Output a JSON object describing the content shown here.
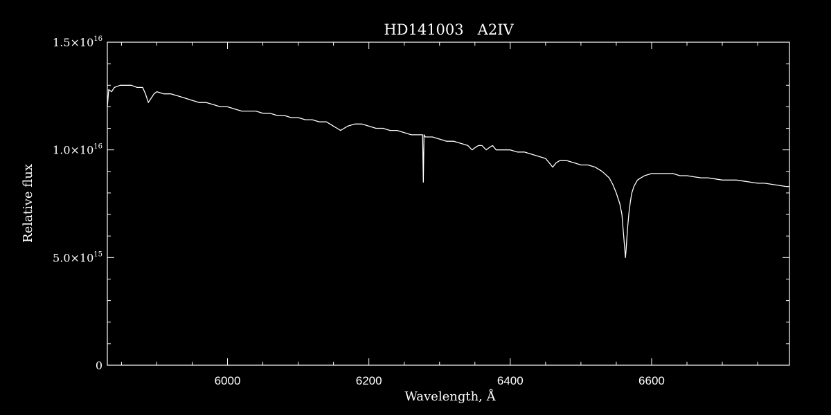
{
  "chart_data": {
    "type": "line",
    "title": "HD141003   A2IV",
    "xlabel": "Wavelength, Å",
    "ylabel": "Relative flux",
    "xlim": [
      5830,
      6795
    ],
    "ylim": [
      0,
      1.5e+16
    ],
    "x_ticks": [
      6000,
      6200,
      6400,
      6600
    ],
    "x_tick_labels": [
      "6000",
      "6200",
      "6400",
      "6600"
    ],
    "y_ticks": [
      0,
      5000000000000000.0,
      1e+16,
      1.5e+16
    ],
    "y_tick_labels": [
      {
        "value": 0,
        "mantissa": "0",
        "exponent": ""
      },
      {
        "value": 5000000000000000.0,
        "mantissa": "5.0×10",
        "exponent": "15"
      },
      {
        "value": 1e+16,
        "mantissa": "1.0×10",
        "exponent": "16"
      },
      {
        "value": 1.5e+16,
        "mantissa": "1.5×10",
        "exponent": "16"
      }
    ],
    "grid": false,
    "colors": {
      "background": "#000000",
      "foreground": "#ffffff"
    },
    "series": [
      {
        "x": [
          5830,
          5832,
          5836,
          5840,
          5848,
          5856,
          5864,
          5872,
          5880,
          5884,
          5888,
          5892,
          5896,
          5900,
          5910,
          5920,
          5930,
          5940,
          5950,
          5960,
          5970,
          5980,
          5990,
          6000,
          6010,
          6020,
          6030,
          6040,
          6050,
          6060,
          6070,
          6080,
          6090,
          6100,
          6110,
          6120,
          6130,
          6140,
          6150,
          6155,
          6160,
          6165,
          6170,
          6180,
          6190,
          6200,
          6210,
          6220,
          6230,
          6240,
          6250,
          6260,
          6270,
          6276,
          6277,
          6278,
          6280,
          6290,
          6300,
          6310,
          6320,
          6330,
          6340,
          6346,
          6350,
          6355,
          6360,
          6366,
          6370,
          6375,
          6380,
          6390,
          6400,
          6410,
          6420,
          6430,
          6440,
          6450,
          6455,
          6460,
          6465,
          6470,
          6480,
          6490,
          6500,
          6510,
          6520,
          6530,
          6540,
          6545,
          6550,
          6555,
          6558,
          6560,
          6562,
          6563,
          6564,
          6566,
          6568,
          6570,
          6572,
          6575,
          6580,
          6585,
          6590,
          6600,
          6610,
          6620,
          6630,
          6640,
          6650,
          6660,
          6670,
          6680,
          6690,
          6700,
          6710,
          6720,
          6730,
          6740,
          6750,
          6760,
          6770,
          6780,
          6790,
          6795
        ],
        "y": [
          1.2e+16,
          1.28e+16,
          1.27e+16,
          1.29e+16,
          1.3e+16,
          1.3e+16,
          1.3e+16,
          1.29e+16,
          1.29e+16,
          1.26e+16,
          1.22e+16,
          1.24e+16,
          1.26e+16,
          1.27e+16,
          1.26e+16,
          1.26e+16,
          1.25e+16,
          1.24e+16,
          1.23e+16,
          1.22e+16,
          1.22e+16,
          1.21e+16,
          1.2e+16,
          1.2e+16,
          1.19e+16,
          1.18e+16,
          1.18e+16,
          1.18e+16,
          1.17e+16,
          1.17e+16,
          1.16e+16,
          1.16e+16,
          1.15e+16,
          1.15e+16,
          1.14e+16,
          1.14e+16,
          1.13e+16,
          1.13e+16,
          1.11e+16,
          1.1e+16,
          1.09e+16,
          1.1e+16,
          1.11e+16,
          1.12e+16,
          1.12e+16,
          1.11e+16,
          1.1e+16,
          1.1e+16,
          1.09e+16,
          1.09e+16,
          1.08e+16,
          1.07e+16,
          1.07e+16,
          1.07e+16,
          8500000000000000.0,
          1.07e+16,
          1.06e+16,
          1.06e+16,
          1.05e+16,
          1.04e+16,
          1.04e+16,
          1.03e+16,
          1.02e+16,
          1e+16,
          1.01e+16,
          1.02e+16,
          1.02e+16,
          1e+16,
          1.01e+16,
          1.02e+16,
          1e+16,
          1e+16,
          1e+16,
          9900000000000000.0,
          9900000000000000.0,
          9800000000000000.0,
          9700000000000000.0,
          9600000000000000.0,
          9400000000000000.0,
          9200000000000000.0,
          9400000000000000.0,
          9500000000000000.0,
          9500000000000000.0,
          9400000000000000.0,
          9300000000000000.0,
          9300000000000000.0,
          9200000000000000.0,
          9000000000000000.0,
          8700000000000000.0,
          8400000000000000.0,
          8000000000000000.0,
          7500000000000000.0,
          7000000000000000.0,
          6200000000000000.0,
          5400000000000000.0,
          5000000000000000.0,
          5400000000000000.0,
          6400000000000000.0,
          7100000000000000.0,
          7600000000000000.0,
          8000000000000000.0,
          8300000000000000.0,
          8600000000000000.0,
          8700000000000000.0,
          8800000000000000.0,
          8900000000000000.0,
          8900000000000000.0,
          8900000000000000.0,
          8900000000000000.0,
          8800000000000000.0,
          8800000000000000.0,
          8750000000000000.0,
          8700000000000000.0,
          8700000000000000.0,
          8650000000000000.0,
          8600000000000000.0,
          8600000000000000.0,
          8600000000000000.0,
          8550000000000000.0,
          8500000000000000.0,
          8450000000000000.0,
          8450000000000000.0,
          8400000000000000.0,
          8350000000000000.0,
          8300000000000000.0,
          8300000000000000.0
        ]
      }
    ]
  }
}
